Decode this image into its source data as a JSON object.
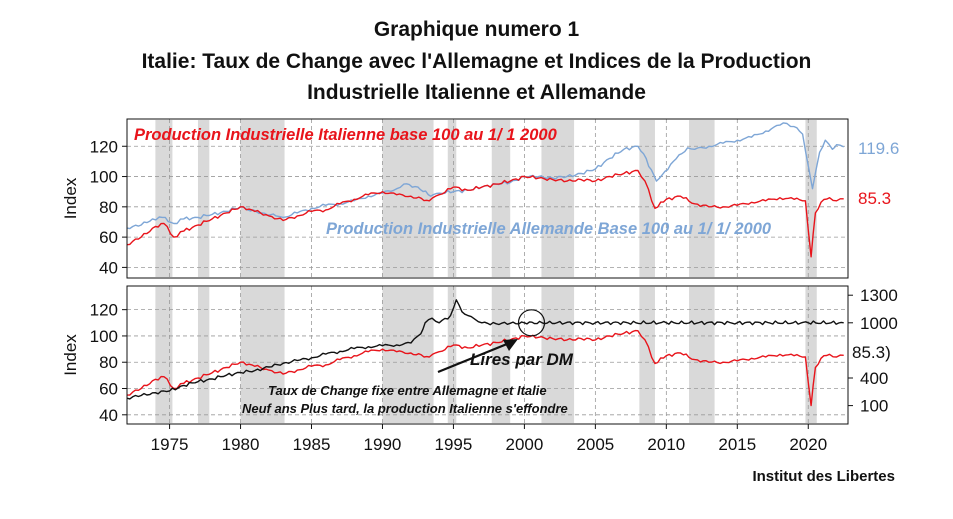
{
  "titles": {
    "line1": "Graphique numero 1",
    "line2": "Italie: Taux de Change avec l'Allemagne et Indices de la Production",
    "line3": "Industrielle Italienne et Allemande"
  },
  "credit": "Institut des Libertes",
  "colors": {
    "italy": "#e8141b",
    "germany": "#7ea6d6",
    "lira": "#111111",
    "recession": "#d9d9d9",
    "grid": "#9a9a9a"
  },
  "chart_data": [
    {
      "type": "line",
      "panel": "top",
      "ylabel": "Index",
      "ylim": [
        33,
        138
      ],
      "yticks": [
        40,
        60,
        80,
        100,
        120
      ],
      "xlim": [
        1972.0,
        2022.8
      ],
      "xticks": [
        1975,
        1980,
        1985,
        1990,
        1995,
        2000,
        2005,
        2010,
        2015,
        2020
      ],
      "recessions": [
        [
          1974.0,
          1975.2
        ],
        [
          1977.0,
          1977.8
        ],
        [
          1980.0,
          1983.1
        ],
        [
          1990.0,
          1993.6
        ],
        [
          1994.6,
          1995.2
        ],
        [
          1997.7,
          1999.0
        ],
        [
          2001.2,
          2003.5
        ],
        [
          2008.1,
          2009.2
        ],
        [
          2011.6,
          2013.4
        ],
        [
          2019.8,
          2020.6
        ]
      ],
      "annotations": {
        "italy_label": "Production Industrielle Italienne base 100 au 1/ 1 2000",
        "germany_label": "Production Industrielle Allemande Base 100 au 1/ 1/ 2000"
      },
      "series": [
        {
          "name": "Production Industrielle Allemande",
          "color": "#7ea6d6",
          "last_label": "119.6",
          "x": [
            1972.0,
            1973.0,
            1973.8,
            1974.5,
            1975.3,
            1976.0,
            1977.0,
            1978.0,
            1979.0,
            1980.0,
            1980.5,
            1981.5,
            1982.5,
            1983.0,
            1984.0,
            1985.0,
            1986.0,
            1987.0,
            1988.0,
            1989.0,
            1990.0,
            1991.0,
            1991.5,
            1992.5,
            1993.4,
            1994.0,
            1995.0,
            1996.0,
            1997.0,
            1998.0,
            1999.0,
            2000.0,
            2001.0,
            2002.0,
            2003.0,
            2004.0,
            2005.0,
            2006.0,
            2007.0,
            2008.0,
            2008.4,
            2009.3,
            2009.7,
            2010.5,
            2011.5,
            2012.0,
            2013.0,
            2014.0,
            2015.0,
            2016.0,
            2017.0,
            2018.0,
            2018.5,
            2019.0,
            2019.6,
            2020.3,
            2020.8,
            2021.2,
            2021.7,
            2022.0,
            2022.5
          ],
          "y": [
            66,
            68,
            72,
            73,
            69,
            72,
            73,
            75,
            77,
            80,
            78,
            76,
            74,
            73,
            76,
            79,
            81,
            82,
            84,
            87,
            89,
            92,
            95,
            93,
            87,
            89,
            90,
            91,
            93,
            95,
            96,
            100,
            100,
            99,
            100,
            102,
            105,
            112,
            118,
            120,
            115,
            97,
            101,
            110,
            119,
            118,
            120,
            122,
            124,
            126,
            130,
            134,
            135,
            133,
            128,
            92,
            116,
            124,
            118,
            121,
            119.6
          ]
        },
        {
          "name": "Production Industrielle Italienne",
          "color": "#e8141b",
          "last_label": "85.3",
          "x": [
            1972.0,
            1973.0,
            1974.0,
            1974.6,
            1975.3,
            1976.0,
            1977.0,
            1978.0,
            1979.0,
            1980.0,
            1980.8,
            1982.0,
            1983.0,
            1984.0,
            1985.0,
            1986.0,
            1987.0,
            1988.0,
            1989.0,
            1990.0,
            1991.0,
            1992.0,
            1993.3,
            1994.0,
            1995.0,
            1996.0,
            1997.0,
            1998.0,
            1999.0,
            2000.0,
            2001.0,
            2002.0,
            2003.0,
            2004.0,
            2005.0,
            2006.0,
            2007.0,
            2008.0,
            2008.5,
            2009.2,
            2010.0,
            2011.0,
            2012.0,
            2013.0,
            2014.0,
            2015.0,
            2016.0,
            2017.0,
            2018.0,
            2019.0,
            2019.8,
            2020.2,
            2020.5,
            2020.9,
            2021.5,
            2022.0,
            2022.5
          ],
          "y": [
            55,
            60,
            67,
            69,
            60,
            64,
            68,
            72,
            76,
            80,
            78,
            74,
            71,
            74,
            77,
            78,
            82,
            85,
            88,
            90,
            88,
            87,
            84,
            88,
            93,
            91,
            93,
            95,
            97,
            100,
            99,
            98,
            97,
            98,
            97,
            100,
            102,
            104,
            97,
            79,
            85,
            87,
            82,
            80,
            80,
            81,
            83,
            84,
            86,
            85,
            84,
            47,
            76,
            83,
            86,
            84,
            85.3
          ]
        }
      ]
    },
    {
      "type": "line",
      "panel": "bottom",
      "ylabel": "Index",
      "ylim": [
        33,
        138
      ],
      "yticks": [
        40,
        60,
        80,
        100,
        120
      ],
      "y2lim": [
        -100,
        1400
      ],
      "y2ticks": [
        100,
        400,
        1000,
        1300
      ],
      "xlim": [
        1972.0,
        2022.8
      ],
      "xticks": [
        1975,
        1980,
        1985,
        1990,
        1995,
        2000,
        2005,
        2010,
        2015,
        2020
      ],
      "annotations": {
        "lires_label": "Lires par DM",
        "fixed_text_1": "Taux de Change fixe entre Allemagne et Italie",
        "fixed_text_2": "Neuf ans Plus tard, la production Italienne s'effondre",
        "right_value_label": "85.3)",
        "circle_at": [
          2000.5,
          1000
        ]
      },
      "series": [
        {
          "name": "Production Industrielle Italienne",
          "color": "#e8141b",
          "axis": "left",
          "x": [
            1972.0,
            1973.0,
            1974.0,
            1974.6,
            1975.3,
            1976.0,
            1977.0,
            1978.0,
            1979.0,
            1980.0,
            1980.8,
            1982.0,
            1983.0,
            1984.0,
            1985.0,
            1986.0,
            1987.0,
            1988.0,
            1989.0,
            1990.0,
            1991.0,
            1992.0,
            1993.3,
            1994.0,
            1995.0,
            1996.0,
            1997.0,
            1998.0,
            1999.0,
            2000.0,
            2001.0,
            2002.0,
            2003.0,
            2004.0,
            2005.0,
            2006.0,
            2007.0,
            2008.0,
            2008.5,
            2009.2,
            2010.0,
            2011.0,
            2012.0,
            2013.0,
            2014.0,
            2015.0,
            2016.0,
            2017.0,
            2018.0,
            2019.0,
            2019.8,
            2020.2,
            2020.5,
            2020.9,
            2021.5,
            2022.0,
            2022.5
          ],
          "y": [
            55,
            60,
            67,
            69,
            60,
            64,
            68,
            72,
            76,
            80,
            78,
            74,
            71,
            74,
            77,
            78,
            82,
            85,
            88,
            90,
            88,
            87,
            84,
            88,
            93,
            91,
            93,
            95,
            97,
            100,
            99,
            98,
            97,
            98,
            97,
            100,
            102,
            104,
            97,
            79,
            85,
            87,
            82,
            80,
            80,
            81,
            83,
            84,
            86,
            85,
            84,
            47,
            76,
            83,
            86,
            84,
            85.3
          ]
        },
        {
          "name": "Lires par DM",
          "color": "#111111",
          "axis": "right",
          "x": [
            1972.0,
            1973.0,
            1974.0,
            1975.0,
            1976.0,
            1977.0,
            1978.0,
            1979.0,
            1980.0,
            1981.0,
            1982.0,
            1983.0,
            1984.0,
            1985.0,
            1986.0,
            1987.0,
            1988.0,
            1989.0,
            1990.0,
            1991.0,
            1992.0,
            1992.7,
            1993.0,
            1993.5,
            1994.0,
            1994.8,
            1995.2,
            1995.6,
            1996.0,
            1996.5,
            1997.0,
            1998.0,
            1999.0,
            2000.0,
            2005.0,
            2010.0,
            2015.0,
            2020.0,
            2022.5
          ],
          "y": [
            180,
            210,
            240,
            260,
            320,
            360,
            390,
            430,
            460,
            480,
            520,
            560,
            590,
            620,
            660,
            690,
            720,
            740,
            750,
            760,
            780,
            880,
            1000,
            1050,
            1000,
            1080,
            1250,
            1120,
            1080,
            1040,
            1000,
            990,
            995,
            1000,
            1000,
            1000,
            1000,
            1000,
            1000
          ]
        }
      ]
    }
  ]
}
